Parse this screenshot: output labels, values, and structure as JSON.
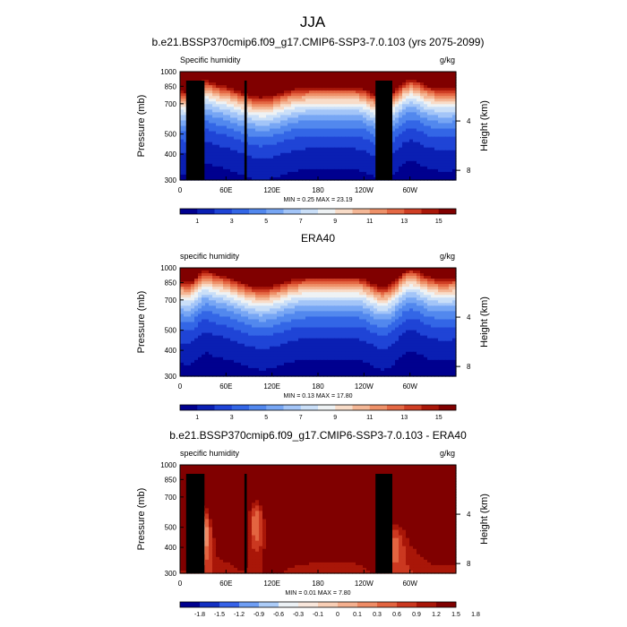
{
  "page": {
    "title": "JJA"
  },
  "colors": {
    "frame": "#000000",
    "terrain": "#000000"
  },
  "abs_colors": [
    "#00008f",
    "#0a1fb3",
    "#1f44d6",
    "#3366e6",
    "#5288ee",
    "#77a6f4",
    "#a3c5f8",
    "#cadff8",
    "#eef2f4",
    "#f8dcc8",
    "#f4b796",
    "#ee9169",
    "#e46844",
    "#cf3e24",
    "#a91709",
    "#800000"
  ],
  "diff_colors": [
    "#00008f",
    "#1330c2",
    "#3662e8",
    "#6f9ef4",
    "#acccf8",
    "#ecf1f5",
    "#f9e7dc",
    "#f9cfb6",
    "#f5b08f",
    "#ef8c66",
    "#e36440",
    "#cb3820",
    "#a91608",
    "#800000"
  ],
  "chart_data": [
    {
      "type": "heatmap",
      "title": "b.e21.BSSP370cmip6.f09_g17.CMIP6-SSP3-7.0.103 (yrs 2075-2099)",
      "left_label": "Specific humidity",
      "right_label": "g/kg",
      "ylabel": "Pressure (mb)",
      "ylabel_right": "Height (km)",
      "y_ticks": [
        "300",
        "400",
        "500",
        "700",
        "850",
        "1000"
      ],
      "y_right_ticks": [
        "8",
        "4"
      ],
      "x_ticks": [
        "0",
        "60E",
        "120E",
        "180",
        "120W",
        "60W"
      ],
      "stats": "MIN =   0.25  MAX =  23.19",
      "colorbar_labels": [
        "1",
        "3",
        "5",
        "7",
        "9",
        "11",
        "13",
        "15"
      ],
      "colorbar_levels": [
        0,
        1,
        2,
        3,
        4,
        5,
        6,
        7,
        8,
        9,
        10,
        11,
        12,
        13,
        14,
        15,
        16
      ],
      "xlim": [
        0,
        360
      ],
      "ylim": [
        1000,
        300
      ],
      "min": 0.25,
      "max": 23.19
    },
    {
      "type": "heatmap",
      "title": "ERA40",
      "left_label": "specific humidity",
      "right_label": "g/kg",
      "ylabel": "Pressure (mb)",
      "ylabel_right": "Height (km)",
      "y_ticks": [
        "300",
        "400",
        "500",
        "700",
        "850",
        "1000"
      ],
      "y_right_ticks": [
        "8",
        "4"
      ],
      "x_ticks": [
        "0",
        "60E",
        "120E",
        "180",
        "120W",
        "60W"
      ],
      "stats": "MIN =   0.13  MAX =  17.80",
      "colorbar_labels": [
        "1",
        "3",
        "5",
        "7",
        "9",
        "11",
        "13",
        "15"
      ],
      "colorbar_levels": [
        0,
        1,
        2,
        3,
        4,
        5,
        6,
        7,
        8,
        9,
        10,
        11,
        12,
        13,
        14,
        15,
        16
      ],
      "xlim": [
        0,
        360
      ],
      "ylim": [
        1000,
        300
      ],
      "min": 0.13,
      "max": 17.8
    },
    {
      "type": "heatmap",
      "title": "b.e21.BSSP370cmip6.f09_g17.CMIP6-SSP3-7.0.103 - ERA40",
      "left_label": "specific humidity",
      "right_label": "g/kg",
      "ylabel": "Pressure (mb)",
      "ylabel_right": "Height (km)",
      "y_ticks": [
        "300",
        "400",
        "500",
        "700",
        "850",
        "1000"
      ],
      "y_right_ticks": [
        "8",
        "4"
      ],
      "x_ticks": [
        "0",
        "60E",
        "120E",
        "180",
        "120W",
        "60W"
      ],
      "stats": "MIN =   0.01  MAX =   7.80",
      "colorbar_labels": [
        "-1.8",
        "-1.5",
        "-1.2",
        "-0.9",
        "-0.6",
        "-0.3",
        "-0.1",
        "0",
        "0.1",
        "0.3",
        "0.6",
        "0.9",
        "1.2",
        "1.5",
        "1.8"
      ],
      "colorbar_levels": [
        -1.8,
        -1.5,
        -1.2,
        -0.9,
        -0.6,
        -0.3,
        -0.1,
        0,
        0.1,
        0.3,
        0.6,
        0.9,
        1.2,
        1.5,
        1.8
      ],
      "xlim": [
        0,
        360
      ],
      "ylim": [
        1000,
        300
      ],
      "min": 0.01,
      "max": 7.8
    }
  ]
}
